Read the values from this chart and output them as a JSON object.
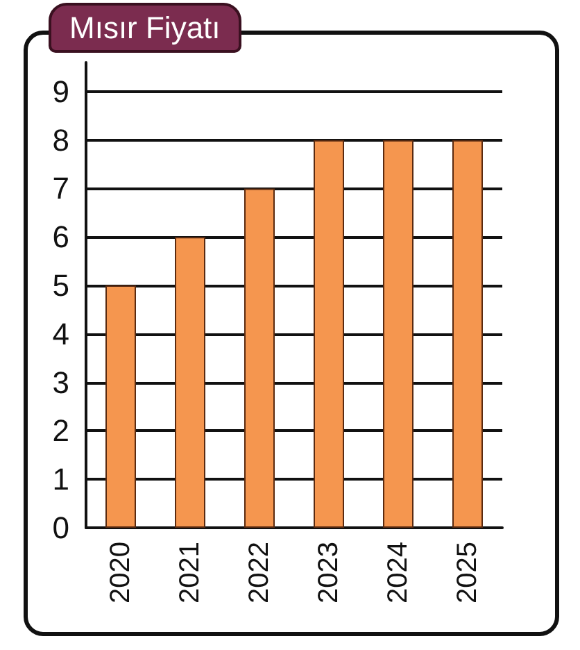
{
  "chart_data": {
    "type": "bar",
    "title": "Mısır Fiyatı",
    "categories": [
      "2020",
      "2021",
      "2022",
      "2023",
      "2024",
      "2025"
    ],
    "values": [
      5,
      6,
      7,
      8,
      8,
      8
    ],
    "color": "#f5964f",
    "ylim": [
      0,
      9.6
    ],
    "yticks": [
      0,
      1,
      2,
      3,
      4,
      5,
      6,
      7,
      8,
      9
    ],
    "grid": "y"
  }
}
